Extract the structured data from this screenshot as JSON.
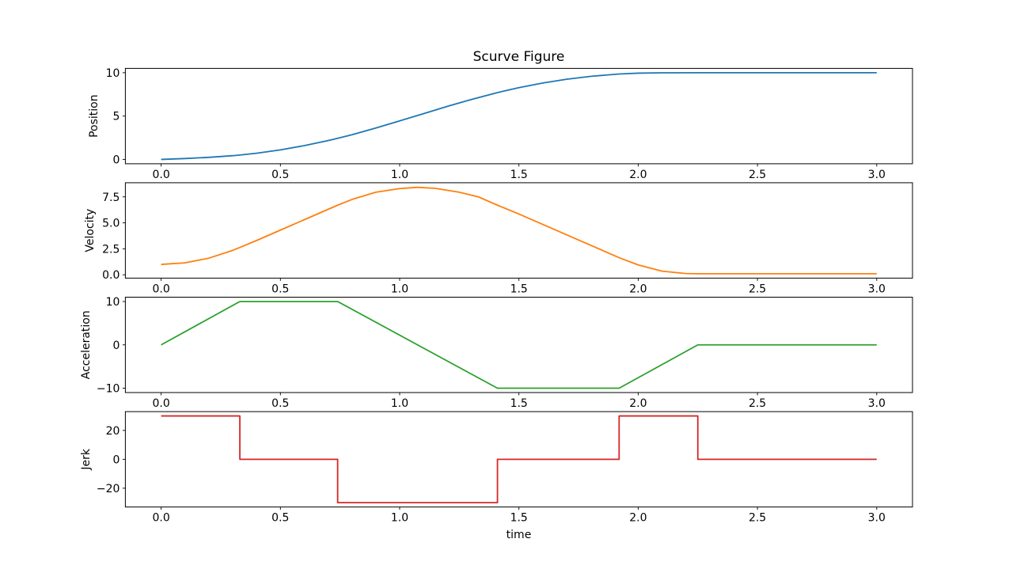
{
  "figure": {
    "title": "Scurve Figure",
    "xlabel": "time",
    "background_color": "#ffffff",
    "spine_color": "#000000",
    "tick_color": "#000000"
  },
  "chart_data": [
    {
      "type": "line",
      "series_name": "position",
      "ylabel": "Position",
      "color": "#1f77b4",
      "grid": false,
      "legend": "none",
      "xlim": [
        -0.15,
        3.15
      ],
      "ylim": [
        -0.5,
        10.5
      ],
      "xtick_values": [
        0,
        0.5,
        1.0,
        1.5,
        2.0,
        2.5,
        3.0
      ],
      "xtick_labels": [
        "0.0",
        "0.5",
        "1.0",
        "1.5",
        "2.0",
        "2.5",
        "3.0"
      ],
      "ytick_values": [
        0,
        5,
        10
      ],
      "ytick_labels": [
        "0",
        "5",
        "10"
      ],
      "x": [
        0,
        0.1,
        0.2,
        0.3,
        0.33,
        0.4,
        0.5,
        0.6,
        0.7,
        0.74,
        0.8,
        0.9,
        1.0,
        1.1,
        1.2,
        1.3,
        1.41,
        1.5,
        1.6,
        1.7,
        1.8,
        1.9,
        1.92,
        2.0,
        2.1,
        2.25,
        2.5,
        3.0
      ],
      "y": [
        0,
        0.1,
        0.24,
        0.43,
        0.51,
        0.71,
        1.1,
        1.59,
        2.17,
        2.43,
        2.85,
        3.62,
        4.44,
        5.28,
        6.12,
        6.91,
        7.71,
        8.28,
        8.81,
        9.25,
        9.58,
        9.81,
        9.85,
        9.95,
        9.99,
        10.0,
        10.0,
        10.0
      ]
    },
    {
      "type": "line",
      "series_name": "velocity",
      "ylabel": "Velocity",
      "color": "#ff7f0e",
      "grid": false,
      "legend": "none",
      "xlim": [
        -0.15,
        3.15
      ],
      "ylim": [
        -0.32,
        8.86
      ],
      "xtick_values": [
        0,
        0.5,
        1.0,
        1.5,
        2.0,
        2.5,
        3.0
      ],
      "xtick_labels": [
        "0.0",
        "0.5",
        "1.0",
        "1.5",
        "2.0",
        "2.5",
        "3.0"
      ],
      "ytick_values": [
        0,
        2.5,
        5.0,
        7.5
      ],
      "ytick_labels": [
        "0.0",
        "2.5",
        "5.0",
        "7.5"
      ],
      "x": [
        0,
        0.1,
        0.2,
        0.3,
        0.33,
        0.4,
        0.5,
        0.6,
        0.7,
        0.74,
        0.8,
        0.9,
        1.0,
        1.075,
        1.15,
        1.25,
        1.33,
        1.41,
        1.5,
        1.6,
        1.7,
        1.8,
        1.9,
        1.92,
        2.0,
        2.1,
        2.2,
        2.25,
        2.5,
        3.0
      ],
      "y": [
        1.0,
        1.15,
        1.6,
        2.35,
        2.63,
        3.3,
        4.3,
        5.3,
        6.3,
        6.7,
        7.25,
        7.95,
        8.3,
        8.42,
        8.32,
        7.95,
        7.5,
        6.7,
        5.85,
        4.85,
        3.85,
        2.85,
        1.85,
        1.65,
        0.95,
        0.35,
        0.12,
        0.1,
        0.1,
        0.1
      ]
    },
    {
      "type": "line",
      "series_name": "acceleration",
      "ylabel": "Acceleration",
      "color": "#2ca02c",
      "grid": false,
      "legend": "none",
      "xlim": [
        -0.15,
        3.15
      ],
      "ylim": [
        -11,
        11
      ],
      "xtick_values": [
        0,
        0.5,
        1.0,
        1.5,
        2.0,
        2.5,
        3.0
      ],
      "xtick_labels": [
        "0.0",
        "0.5",
        "1.0",
        "1.5",
        "2.0",
        "2.5",
        "3.0"
      ],
      "ytick_values": [
        -10,
        0,
        10
      ],
      "ytick_labels": [
        "−10",
        "0",
        "10"
      ],
      "x": [
        0,
        0.33,
        0.74,
        1.41,
        1.92,
        2.25,
        3.0
      ],
      "y": [
        0,
        10,
        10,
        -10,
        -10,
        0,
        0
      ]
    },
    {
      "type": "line",
      "series_name": "jerk",
      "ylabel": "Jerk",
      "color": "#d62728",
      "grid": false,
      "legend": "none",
      "xlim": [
        -0.15,
        3.15
      ],
      "ylim": [
        -33,
        33
      ],
      "xtick_values": [
        0,
        0.5,
        1.0,
        1.5,
        2.0,
        2.5,
        3.0
      ],
      "xtick_labels": [
        "0.0",
        "0.5",
        "1.0",
        "1.5",
        "2.0",
        "2.5",
        "3.0"
      ],
      "ytick_values": [
        -20,
        0,
        20
      ],
      "ytick_labels": [
        "−20",
        "0",
        "20"
      ],
      "x": [
        0,
        0.33,
        0.33,
        0.74,
        0.74,
        1.41,
        1.41,
        1.92,
        1.92,
        2.25,
        2.25,
        3.0
      ],
      "y": [
        30,
        30,
        0,
        0,
        -30,
        -30,
        0,
        0,
        30,
        30,
        0,
        0
      ]
    }
  ]
}
